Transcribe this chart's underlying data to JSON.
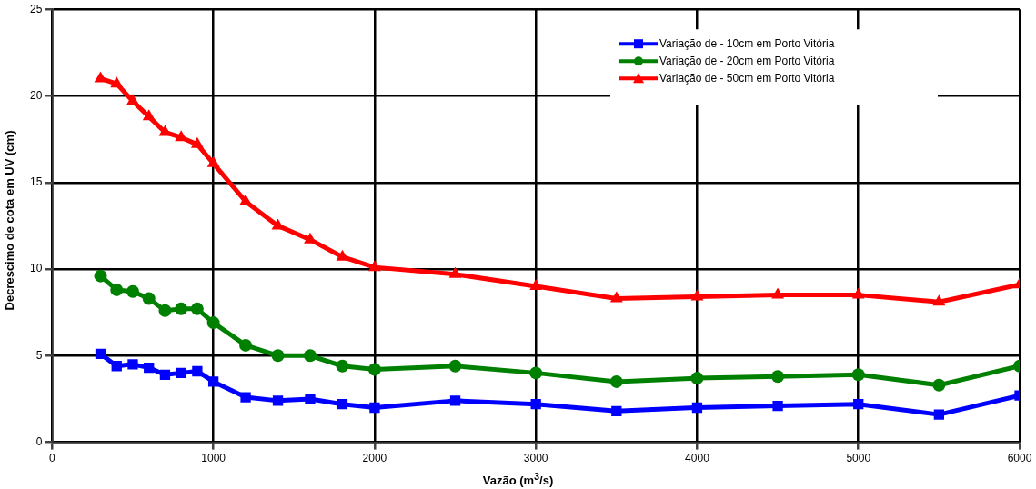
{
  "chart_data": {
    "type": "line",
    "xlabel": "Vazão (m$^{3}$/s)",
    "ylabel": "Decrescimo de cota em UV (cm)",
    "x": [
      300,
      400,
      500,
      600,
      700,
      800,
      900,
      1000,
      1200,
      1400,
      1600,
      1800,
      2000,
      2500,
      3000,
      3500,
      4000,
      4500,
      5000,
      5500,
      6000
    ],
    "series": [
      {
        "name": "Variação de - 10cm em Porto Vitória",
        "color": "#0000ff",
        "marker": "square",
        "values": [
          5.1,
          4.4,
          4.5,
          4.3,
          3.9,
          4.0,
          4.1,
          3.5,
          2.6,
          2.4,
          2.5,
          2.2,
          2.0,
          2.4,
          2.2,
          1.8,
          2.0,
          2.1,
          2.2,
          1.6,
          2.7
        ]
      },
      {
        "name": "Variação de - 20cm em Porto Vitória",
        "color": "#008000",
        "marker": "circle",
        "values": [
          9.6,
          8.8,
          8.7,
          8.3,
          7.6,
          7.7,
          7.7,
          6.9,
          5.6,
          5.0,
          5.0,
          4.4,
          4.2,
          4.4,
          4.0,
          3.5,
          3.7,
          3.8,
          3.9,
          3.3,
          4.4
        ]
      },
      {
        "name": "Variação de - 50cm em Porto Vitória",
        "color": "#ff0000",
        "marker": "triangle",
        "values": [
          21.0,
          20.7,
          19.7,
          18.8,
          17.9,
          17.6,
          17.2,
          16.1,
          13.9,
          12.5,
          11.7,
          10.7,
          10.1,
          9.7,
          9.0,
          8.3,
          8.4,
          8.5,
          8.5,
          8.1,
          9.1
        ]
      }
    ],
    "xlim": [
      0,
      6000
    ],
    "xticks": [
      0,
      1000,
      2000,
      3000,
      4000,
      5000,
      6000
    ],
    "ylim": [
      0,
      25
    ],
    "yticks": [
      0,
      5,
      10,
      15,
      20,
      25
    ],
    "grid": true,
    "legend": "top right",
    "line_style": "solid"
  }
}
